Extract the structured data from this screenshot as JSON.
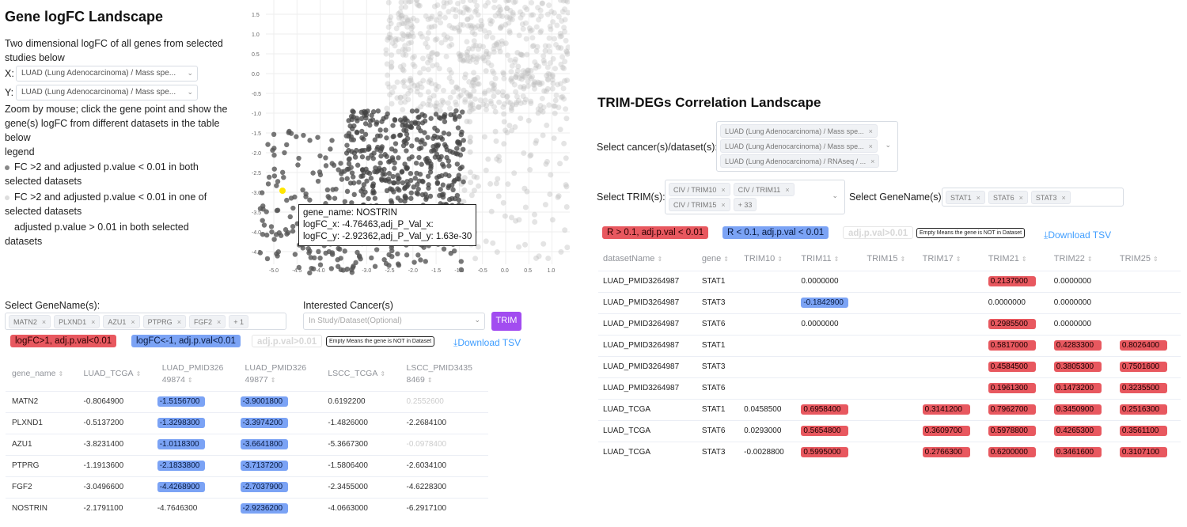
{
  "left": {
    "title": "Gene logFC Landscape",
    "desc": "Two dimensional logFC of all genes from selected studies below",
    "x_label": "X:",
    "y_label": "Y:",
    "x_select": "LUAD (Lung Adenocarcinoma) / Mass spe...",
    "y_select": "LUAD (Lung Adenocarcinoma) / Mass spe...",
    "zoom_hint": "Zoom by mouse; click the gene point and show the gene(s) logFC from different datasets in the table below",
    "legend_title": "legend",
    "legend_items": [
      "FC >2 and adjusted p.value < 0.01 in both selected datasets",
      "FC >2 and adjusted p.value < 0.01 in one of selected datasets",
      "adjusted p.value > 0.01 in both selected datasets"
    ],
    "scatter": {
      "y_ticks": [
        "1.5",
        "1.0",
        "0.5",
        "0.0",
        "-0.5",
        "-1.0",
        "-1.5",
        "-2.0",
        "-2.5",
        "-3.0",
        "-3.5",
        "-4.0",
        "-4.5"
      ],
      "x_ticks": [
        "-5.0",
        "-4.5",
        "-4.0",
        "-3.5",
        "-3.0",
        "-2.5",
        "-2.0",
        "-1.5",
        "-1.0",
        "-0.5",
        "0.0",
        "0.5",
        "1.0"
      ],
      "tooltip": [
        "gene_name: NOSTRIN",
        "logFC_x: -4.76463,adj_P_Val_x:",
        "logFC_y: -2.92362,adj_P_Val_y: 1.63e-30"
      ]
    },
    "gene_select_label": "Select GeneName(s):",
    "gene_chips": [
      "MATN2",
      "PLXND1",
      "AZU1",
      "PTPRG",
      "FGF2",
      "+ 1"
    ],
    "cancer_label": "Interested Cancer(s)",
    "cancer_placeholder": "In Study/Dataset(Optional)",
    "trim_button": "TRIM",
    "tag_red": "logFC>1, adj.p.val<0.01",
    "tag_blue": "logFC<-1, adj.p.val<0.01",
    "tag_ghost": "adj.p.val>0.01",
    "tag_note": "Empty Means the gene is NOT in Dataset",
    "download": "Download TSV",
    "table": {
      "headers": [
        [
          "gene_name",
          ""
        ],
        [
          "LUAD_TCGA",
          ""
        ],
        [
          "LUAD_PMID326",
          "49874"
        ],
        [
          "LUAD_PMID326",
          "49877"
        ],
        [
          "LSCC_TCGA",
          ""
        ],
        [
          "LSCC_PMID3435",
          "8469"
        ]
      ],
      "rows": [
        {
          "cells": [
            "MATN2",
            "-0.8064900",
            "-1.5156700",
            "-3.9001800",
            "0.6192200",
            "0.2552600"
          ],
          "style": [
            "",
            "",
            "blue",
            "blue",
            "",
            "faint"
          ]
        },
        {
          "cells": [
            "PLXND1",
            "-0.5137200",
            "-1.3298300",
            "-3.3974200",
            "-1.4826000",
            "-2.2684100"
          ],
          "style": [
            "",
            "",
            "blue",
            "blue",
            "",
            ""
          ]
        },
        {
          "cells": [
            "AZU1",
            "-3.8231400",
            "-1.0118300",
            "-3.6641800",
            "-5.3667300",
            "-0.0978400"
          ],
          "style": [
            "",
            "",
            "blue",
            "blue",
            "",
            "faint"
          ]
        },
        {
          "cells": [
            "PTPRG",
            "-1.1913600",
            "-2.1833800",
            "-3.7137200",
            "-1.5806400",
            "-2.6034100"
          ],
          "style": [
            "",
            "",
            "blue",
            "blue",
            "",
            ""
          ]
        },
        {
          "cells": [
            "FGF2",
            "-3.0496600",
            "-4.4268900",
            "-2.7037900",
            "-2.3455000",
            "-4.6228300"
          ],
          "style": [
            "",
            "",
            "blue",
            "blue",
            "",
            ""
          ]
        },
        {
          "cells": [
            "NOSTRIN",
            "-2.1791100",
            "-4.7646300",
            "-2.9236200",
            "-4.0663000",
            "-6.2917100"
          ],
          "style": [
            "",
            "",
            "",
            "blue",
            "",
            ""
          ]
        }
      ]
    }
  },
  "right": {
    "title": "TRIM-DEGs Correlation Landscape",
    "cancer_label": "Select cancer(s)/dataset(s):",
    "cancer_chips": [
      "LUAD (Lung Adenocarcinoma) / Mass spe...",
      "LUAD (Lung Adenocarcinoma) / Mass spe...",
      "LUAD (Lung Adenocarcinoma) / RNAseq / ..."
    ],
    "trim_label": "Select TRIM(s):",
    "trim_chips": [
      "CIV / TRIM10",
      "CIV / TRIM11",
      "CIV / TRIM15",
      "+ 33"
    ],
    "gene_label": "Select GeneName(s):",
    "gene_chips": [
      "STAT1",
      "STAT6",
      "STAT3"
    ],
    "tag_red": "R > 0.1, adj.p.val < 0.01",
    "tag_blue": "R < 0.1, adj.p.val < 0.01",
    "tag_ghost": "adj.p.val>0.01",
    "tag_note": "Empty Means the gene is NOT in Dataset",
    "download": "Download TSV",
    "table": {
      "headers": [
        "datasetName",
        "gene",
        "TRIM10",
        "TRIM11",
        "TRIM15",
        "TRIM17",
        "TRIM21",
        "TRIM22",
        "TRIM25"
      ],
      "rows": [
        {
          "cells": [
            "LUAD_PMID3264987",
            "STAT1",
            "",
            "0.0000000",
            "",
            "",
            "0.2137900",
            "0.0000000",
            ""
          ],
          "style": [
            "",
            "",
            "",
            "",
            "",
            "",
            "red",
            "",
            ""
          ]
        },
        {
          "cells": [
            "LUAD_PMID3264987",
            "STAT3",
            "",
            "-0.1842900",
            "",
            "",
            "0.0000000",
            "0.0000000",
            ""
          ],
          "style": [
            "",
            "",
            "",
            "blue",
            "",
            "",
            "",
            "",
            ""
          ]
        },
        {
          "cells": [
            "LUAD_PMID3264987",
            "STAT6",
            "",
            "0.0000000",
            "",
            "",
            "0.2985500",
            "0.0000000",
            ""
          ],
          "style": [
            "",
            "",
            "",
            "",
            "",
            "",
            "red",
            "",
            ""
          ]
        },
        {
          "cells": [
            "LUAD_PMID3264987",
            "STAT1",
            "",
            "",
            "",
            "",
            "0.5817000",
            "0.4283300",
            "0.8026400"
          ],
          "style": [
            "",
            "",
            "",
            "",
            "",
            "",
            "red",
            "red",
            "red"
          ]
        },
        {
          "cells": [
            "LUAD_PMID3264987",
            "STAT3",
            "",
            "",
            "",
            "",
            "0.4584500",
            "0.3805300",
            "0.7501600"
          ],
          "style": [
            "",
            "",
            "",
            "",
            "",
            "",
            "red",
            "red",
            "red"
          ]
        },
        {
          "cells": [
            "LUAD_PMID3264987",
            "STAT6",
            "",
            "",
            "",
            "",
            "0.1961300",
            "0.1473200",
            "0.3235500"
          ],
          "style": [
            "",
            "",
            "",
            "",
            "",
            "",
            "red",
            "red",
            "red"
          ]
        },
        {
          "cells": [
            "LUAD_TCGA",
            "STAT1",
            "0.0458500",
            "0.6958400",
            "",
            "0.3141200",
            "0.7962700",
            "0.3450900",
            "0.2516300"
          ],
          "style": [
            "",
            "",
            "",
            "red",
            "",
            "red",
            "red",
            "red",
            "red"
          ]
        },
        {
          "cells": [
            "LUAD_TCGA",
            "STAT6",
            "0.0293000",
            "0.5654800",
            "",
            "0.3609700",
            "0.5978800",
            "0.4265300",
            "0.3561100"
          ],
          "style": [
            "",
            "",
            "",
            "red",
            "",
            "red",
            "red",
            "red",
            "red"
          ]
        },
        {
          "cells": [
            "LUAD_TCGA",
            "STAT3",
            "-0.0028800",
            "0.5995000",
            "",
            "0.2766300",
            "0.6200000",
            "0.3461600",
            "0.3107100"
          ],
          "style": [
            "",
            "",
            "",
            "red",
            "",
            "red",
            "red",
            "red",
            "red"
          ]
        }
      ]
    }
  },
  "colors": {
    "red": "#e8585f",
    "blue": "#7ba3f5",
    "purple": "#a24cf0",
    "link": "#409eff"
  }
}
